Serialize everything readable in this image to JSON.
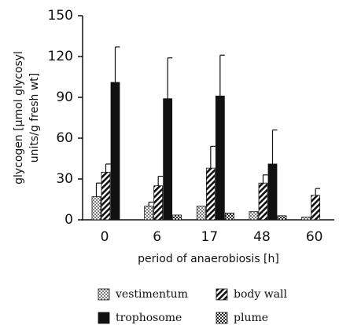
{
  "chart_data": {
    "type": "bar",
    "y_label": [
      "glycogen [µmol glycosyl",
      "units/g fresh wt]"
    ],
    "x_label": "period of anaerobiosis [h]",
    "categories": [
      "0",
      "6",
      "17",
      "48",
      "60"
    ],
    "series": [
      {
        "name": "vestimentum",
        "color": "#111111",
        "pattern": "dots",
        "values": [
          17,
          10,
          10,
          6,
          2
        ],
        "errors": [
          10,
          3,
          null,
          null,
          null
        ]
      },
      {
        "name": "body wall",
        "color": "#111111",
        "pattern": "hatch",
        "values": [
          35,
          25,
          38,
          27,
          18
        ],
        "errors": [
          6,
          7,
          16,
          6,
          5
        ]
      },
      {
        "name": "trophosome",
        "color": "#111111",
        "pattern": "solid",
        "values": [
          101,
          89,
          91,
          41,
          null
        ],
        "errors": [
          26,
          30,
          30,
          25,
          null
        ]
      },
      {
        "name": "plume",
        "color": "#111111",
        "pattern": "checker",
        "values": [
          null,
          3.5,
          5,
          3,
          null
        ],
        "errors": [
          null,
          null,
          null,
          null,
          null
        ]
      }
    ],
    "ylim": [
      0,
      150
    ],
    "yticks": [
      0,
      30,
      60,
      90,
      120,
      150
    ]
  }
}
